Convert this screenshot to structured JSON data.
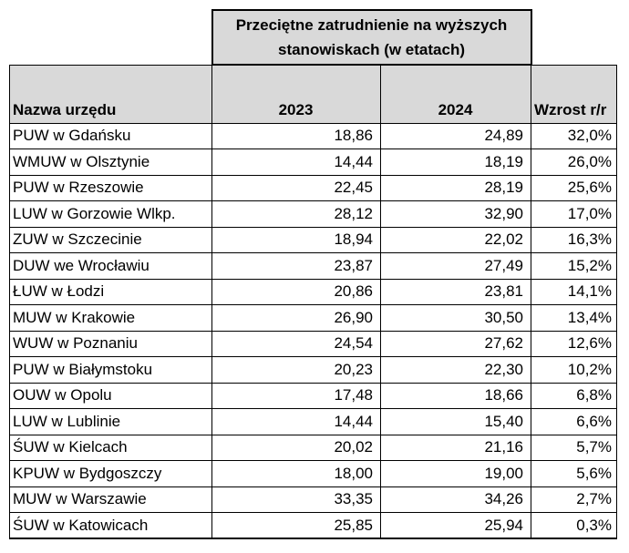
{
  "table": {
    "title": "Przeciętne zatrudnienie na wyższych stanowiskach (w etatach)",
    "columns": {
      "name": "Nazwa urzędu",
      "y2023": "2023",
      "y2024": "2024",
      "growth": "Wzrost r/r"
    },
    "rows": [
      {
        "name": "PUW w Gdańsku",
        "y2023": "18,86",
        "y2024": "24,89",
        "growth": "32,0%"
      },
      {
        "name": "WMUW w Olsztynie",
        "y2023": "14,44",
        "y2024": "18,19",
        "growth": "26,0%"
      },
      {
        "name": "PUW w Rzeszowie",
        "y2023": "22,45",
        "y2024": "28,19",
        "growth": "25,6%"
      },
      {
        "name": "LUW w Gorzowie Wlkp.",
        "y2023": "28,12",
        "y2024": "32,90",
        "growth": "17,0%"
      },
      {
        "name": "ZUW w Szczecinie",
        "y2023": "18,94",
        "y2024": "22,02",
        "growth": "16,3%"
      },
      {
        "name": "DUW we Wrocławiu",
        "y2023": "23,87",
        "y2024": "27,49",
        "growth": "15,2%"
      },
      {
        "name": "ŁUW w Łodzi",
        "y2023": "20,86",
        "y2024": "23,81",
        "growth": "14,1%"
      },
      {
        "name": "MUW w Krakowie",
        "y2023": "26,90",
        "y2024": "30,50",
        "growth": "13,4%"
      },
      {
        "name": "WUW w Poznaniu",
        "y2023": "24,54",
        "y2024": "27,62",
        "growth": "12,6%"
      },
      {
        "name": "PUW w Białymstoku",
        "y2023": "20,23",
        "y2024": "22,30",
        "growth": "10,2%"
      },
      {
        "name": "OUW w Opolu",
        "y2023": "17,48",
        "y2024": "18,66",
        "growth": "6,8%"
      },
      {
        "name": "LUW w Lublinie",
        "y2023": "14,44",
        "y2024": "15,40",
        "growth": "6,6%"
      },
      {
        "name": "ŚUW w Kielcach",
        "y2023": "20,02",
        "y2024": "21,16",
        "growth": "5,7%"
      },
      {
        "name": "KPUW w Bydgoszczy",
        "y2023": "18,00",
        "y2024": "19,00",
        "growth": "5,6%"
      },
      {
        "name": "MUW w Warszawie",
        "y2023": "33,35",
        "y2024": "34,26",
        "growth": "2,7%"
      },
      {
        "name": "ŚUW w Katowicach",
        "y2023": "25,85",
        "y2024": "25,94",
        "growth": "0,3%"
      }
    ]
  },
  "colors": {
    "header_fill": "#d9d9d9",
    "border": "#000000",
    "text": "#000000",
    "background": "#ffffff"
  },
  "chart_data": {
    "type": "table",
    "title": "Przeciętne zatrudnienie na wyższych stanowiskach (w etatach)",
    "columns": [
      "Nazwa urzędu",
      "2023",
      "2024",
      "Wzrost r/r"
    ],
    "categories": [
      "PUW w Gdańsku",
      "WMUW w Olsztynie",
      "PUW w Rzeszowie",
      "LUW w Gorzowie Wlkp.",
      "ZUW w Szczecinie",
      "DUW we Wrocławiu",
      "ŁUW w Łodzi",
      "MUW w Krakowie",
      "WUW w Poznaniu",
      "PUW w Białymstoku",
      "OUW w Opolu",
      "LUW w Lublinie",
      "ŚUW w Kielcach",
      "KPUW w Bydgoszczy",
      "MUW w Warszawie",
      "ŚUW w Katowicach"
    ],
    "series": [
      {
        "name": "2023",
        "values": [
          18.86,
          14.44,
          22.45,
          28.12,
          18.94,
          23.87,
          20.86,
          26.9,
          24.54,
          20.23,
          17.48,
          14.44,
          20.02,
          18.0,
          33.35,
          25.85
        ]
      },
      {
        "name": "2024",
        "values": [
          24.89,
          18.19,
          28.19,
          32.9,
          22.02,
          27.49,
          23.81,
          30.5,
          27.62,
          22.3,
          18.66,
          15.4,
          21.16,
          19.0,
          34.26,
          25.94
        ]
      },
      {
        "name": "Wzrost r/r (%)",
        "values": [
          32.0,
          26.0,
          25.6,
          17.0,
          16.3,
          15.2,
          14.1,
          13.4,
          12.6,
          10.2,
          6.8,
          6.6,
          5.7,
          5.6,
          2.7,
          0.3
        ]
      }
    ]
  }
}
